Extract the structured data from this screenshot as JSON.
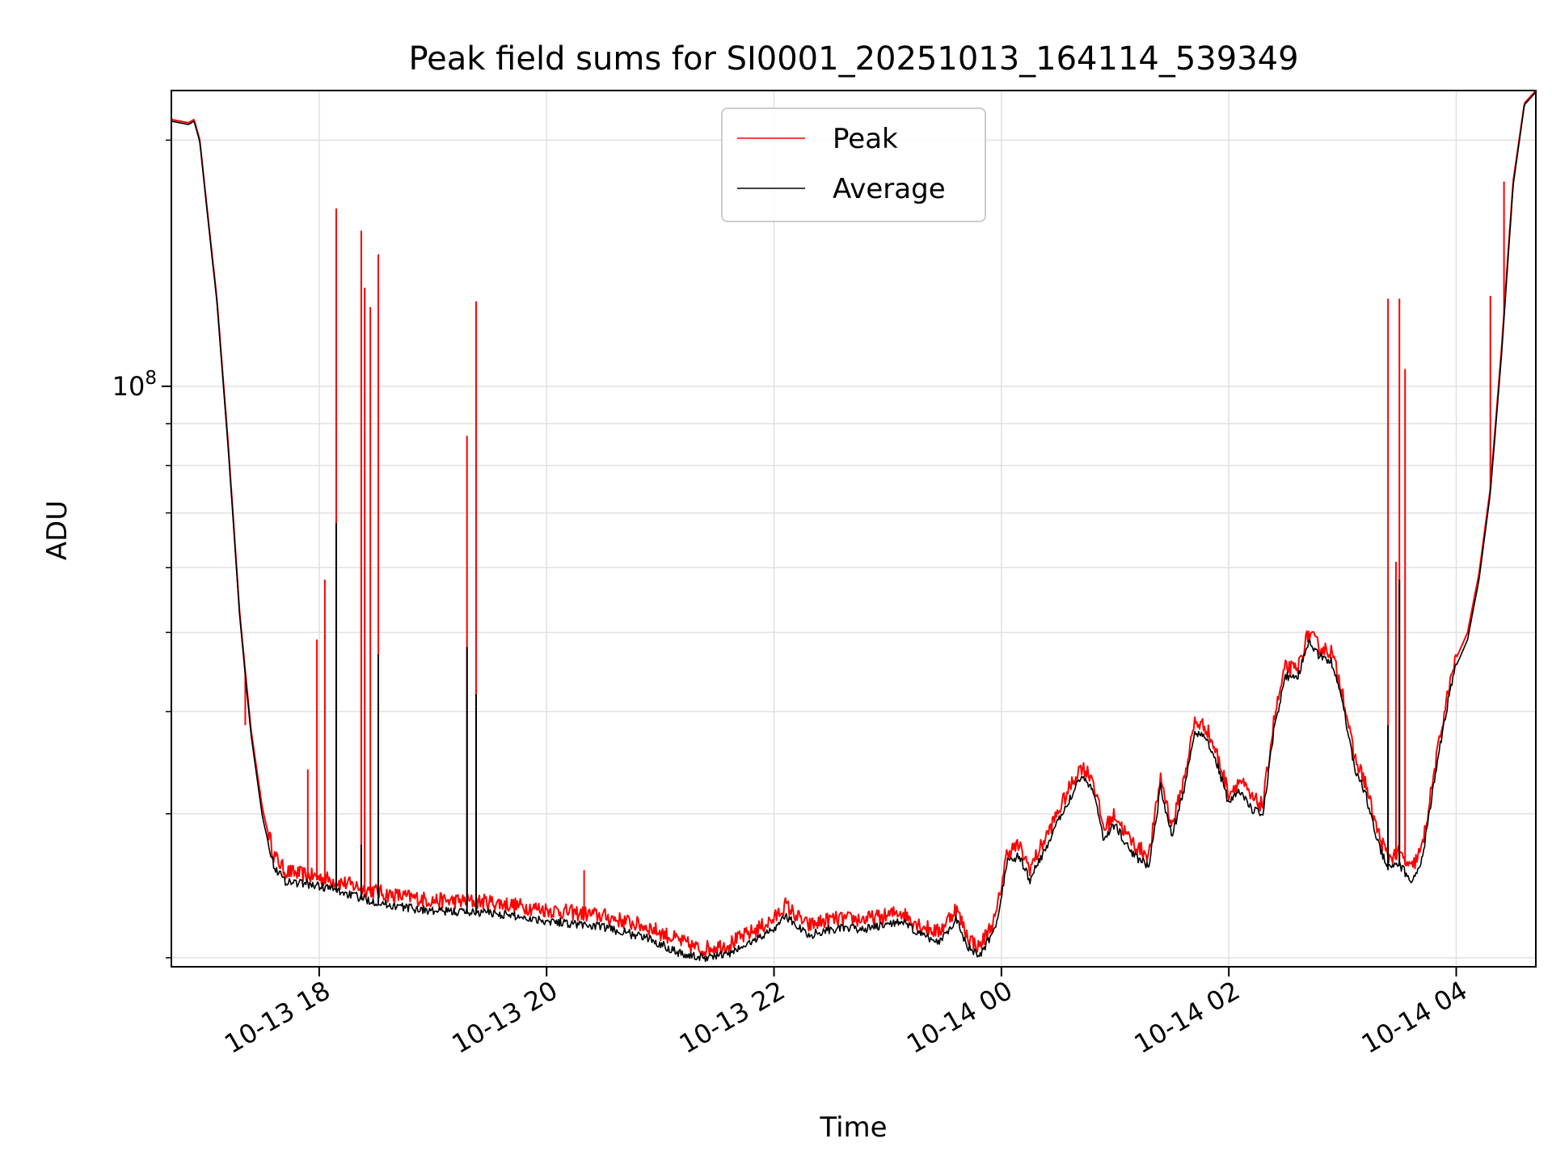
{
  "chart_data": {
    "type": "line",
    "title": "Peak field sums for SI0001_20251013_164114_539349",
    "xlabel": "Time",
    "ylabel": "ADU",
    "yscale": "log",
    "x_units": "hours since 2025-10-13 00:00",
    "xlim": [
      16.7,
      28.7
    ],
    "ylim": [
      19500000,
      230000000
    ],
    "grid": true,
    "legend_position": "top-center",
    "x_ticks": [
      {
        "value": 18,
        "label": "10-13 18"
      },
      {
        "value": 20,
        "label": "10-13 20"
      },
      {
        "value": 22,
        "label": "10-13 22"
      },
      {
        "value": 24,
        "label": "10-14 00"
      },
      {
        "value": 26,
        "label": "10-14 02"
      },
      {
        "value": 28,
        "label": "10-14 04"
      }
    ],
    "y_major_ticks": [
      {
        "value": 100000000,
        "base": "10",
        "exp": "8"
      }
    ],
    "y_minor_ticks": [
      20000000,
      30000000,
      40000000,
      50000000,
      60000000,
      70000000,
      80000000,
      90000000,
      200000000
    ],
    "series": [
      {
        "name": "Peak",
        "color": "#ff0000",
        "baseline": [
          [
            16.7,
            212000000
          ],
          [
            16.85,
            210000000
          ],
          [
            16.9,
            212000000
          ],
          [
            16.95,
            200000000
          ],
          [
            17.0,
            172000000
          ],
          [
            17.1,
            128000000
          ],
          [
            17.2,
            85000000
          ],
          [
            17.3,
            53000000
          ],
          [
            17.4,
            38000000
          ],
          [
            17.5,
            30500000
          ],
          [
            17.6,
            26500000
          ],
          [
            17.7,
            25300000
          ],
          [
            17.9,
            25000000
          ],
          [
            18.1,
            24700000
          ],
          [
            18.3,
            24300000
          ],
          [
            18.6,
            23700000
          ],
          [
            19.0,
            23300000
          ],
          [
            19.5,
            23200000
          ],
          [
            20.0,
            22700000
          ],
          [
            20.5,
            22300000
          ],
          [
            20.9,
            21600000
          ],
          [
            21.2,
            20700000
          ],
          [
            21.35,
            20300000
          ],
          [
            21.6,
            20600000
          ],
          [
            21.8,
            21300000
          ],
          [
            22.0,
            22100000
          ],
          [
            22.1,
            23000000
          ],
          [
            22.2,
            22300000
          ],
          [
            22.3,
            21700000
          ],
          [
            22.5,
            22100000
          ],
          [
            22.8,
            22100000
          ],
          [
            23.0,
            22300000
          ],
          [
            23.1,
            22600000
          ],
          [
            23.3,
            21700000
          ],
          [
            23.45,
            21300000
          ],
          [
            23.6,
            22800000
          ],
          [
            23.7,
            21100000
          ],
          [
            23.8,
            20400000
          ],
          [
            23.95,
            22200000
          ],
          [
            24.05,
            26700000
          ],
          [
            24.15,
            27200000
          ],
          [
            24.25,
            25500000
          ],
          [
            24.4,
            28000000
          ],
          [
            24.6,
            32000000
          ],
          [
            24.7,
            34000000
          ],
          [
            24.8,
            33000000
          ],
          [
            24.9,
            28500000
          ],
          [
            25.0,
            29700000
          ],
          [
            25.1,
            28000000
          ],
          [
            25.2,
            27000000
          ],
          [
            25.3,
            26500000
          ],
          [
            25.4,
            33000000
          ],
          [
            25.5,
            28700000
          ],
          [
            25.6,
            32500000
          ],
          [
            25.7,
            38500000
          ],
          [
            25.8,
            38000000
          ],
          [
            25.9,
            35000000
          ],
          [
            26.0,
            31500000
          ],
          [
            26.1,
            32700000
          ],
          [
            26.2,
            31000000
          ],
          [
            26.3,
            30500000
          ],
          [
            26.4,
            39000000
          ],
          [
            26.5,
            45000000
          ],
          [
            26.6,
            44500000
          ],
          [
            26.7,
            49500000
          ],
          [
            26.8,
            47500000
          ],
          [
            26.9,
            47000000
          ],
          [
            27.0,
            42000000
          ],
          [
            27.1,
            35000000
          ],
          [
            27.2,
            32500000
          ],
          [
            27.3,
            28500000
          ],
          [
            27.4,
            26300000
          ],
          [
            27.5,
            26600000
          ],
          [
            27.6,
            25400000
          ],
          [
            27.7,
            27000000
          ],
          [
            27.8,
            33000000
          ],
          [
            27.9,
            40000000
          ],
          [
            28.0,
            46500000
          ],
          [
            28.1,
            50000000
          ],
          [
            28.2,
            59000000
          ],
          [
            28.3,
            75000000
          ],
          [
            28.4,
            112000000
          ],
          [
            28.5,
            178000000
          ],
          [
            28.6,
            222000000
          ],
          [
            28.7,
            230000000
          ]
        ],
        "spikes": [
          [
            17.35,
            38500000
          ],
          [
            17.48,
            32000000
          ],
          [
            17.9,
            34000000
          ],
          [
            17.98,
            49000000
          ],
          [
            18.05,
            58000000
          ],
          [
            18.15,
            165000000
          ],
          [
            18.37,
            155000000
          ],
          [
            18.4,
            132000000
          ],
          [
            18.45,
            125000000
          ],
          [
            18.52,
            145000000
          ],
          [
            19.3,
            87000000
          ],
          [
            19.38,
            127000000
          ],
          [
            20.33,
            25600000
          ],
          [
            27.35,
            27000000
          ],
          [
            27.4,
            128000000
          ],
          [
            27.47,
            61000000
          ],
          [
            27.5,
            128000000
          ],
          [
            27.55,
            105000000
          ],
          [
            28.3,
            129000000
          ],
          [
            28.42,
            178000000
          ]
        ]
      },
      {
        "name": "Average",
        "color": "#000000",
        "baseline": [
          [
            16.7,
            211000000
          ],
          [
            16.85,
            209000000
          ],
          [
            16.9,
            211000000
          ],
          [
            16.95,
            199000000
          ],
          [
            17.0,
            171000000
          ],
          [
            17.1,
            127000000
          ],
          [
            17.2,
            84000000
          ],
          [
            17.3,
            52500000
          ],
          [
            17.4,
            37500000
          ],
          [
            17.5,
            29800000
          ],
          [
            17.6,
            25800000
          ],
          [
            17.7,
            24700000
          ],
          [
            17.9,
            24500000
          ],
          [
            18.1,
            24200000
          ],
          [
            18.3,
            23700000
          ],
          [
            18.6,
            23100000
          ],
          [
            19.0,
            22700000
          ],
          [
            19.5,
            22600000
          ],
          [
            20.0,
            22100000
          ],
          [
            20.5,
            21700000
          ],
          [
            20.9,
            21000000
          ],
          [
            21.2,
            20100000
          ],
          [
            21.35,
            19900000
          ],
          [
            21.6,
            20100000
          ],
          [
            21.8,
            20800000
          ],
          [
            22.0,
            21600000
          ],
          [
            22.1,
            22400000
          ],
          [
            22.2,
            21800000
          ],
          [
            22.3,
            21200000
          ],
          [
            22.5,
            21600000
          ],
          [
            22.8,
            21600000
          ],
          [
            23.0,
            21800000
          ],
          [
            23.1,
            22100000
          ],
          [
            23.3,
            21200000
          ],
          [
            23.45,
            20800000
          ],
          [
            23.6,
            22200000
          ],
          [
            23.7,
            20600000
          ],
          [
            23.8,
            19900000
          ],
          [
            23.95,
            21700000
          ],
          [
            24.05,
            26000000
          ],
          [
            24.15,
            26500000
          ],
          [
            24.25,
            24800000
          ],
          [
            24.4,
            27300000
          ],
          [
            24.6,
            31200000
          ],
          [
            24.7,
            33200000
          ],
          [
            24.8,
            32200000
          ],
          [
            24.9,
            27800000
          ],
          [
            25.0,
            29000000
          ],
          [
            25.1,
            27300000
          ],
          [
            25.2,
            26300000
          ],
          [
            25.3,
            25800000
          ],
          [
            25.4,
            32200000
          ],
          [
            25.5,
            28000000
          ],
          [
            25.6,
            31700000
          ],
          [
            25.7,
            37600000
          ],
          [
            25.8,
            37100000
          ],
          [
            25.9,
            34200000
          ],
          [
            26.0,
            30700000
          ],
          [
            26.1,
            31900000
          ],
          [
            26.2,
            30200000
          ],
          [
            26.3,
            29700000
          ],
          [
            26.4,
            38100000
          ],
          [
            26.5,
            44000000
          ],
          [
            26.6,
            43500000
          ],
          [
            26.7,
            48500000
          ],
          [
            26.8,
            46500000
          ],
          [
            26.9,
            46000000
          ],
          [
            27.0,
            41000000
          ],
          [
            27.1,
            34200000
          ],
          [
            27.2,
            31700000
          ],
          [
            27.3,
            27800000
          ],
          [
            27.4,
            25600000
          ],
          [
            27.5,
            25900000
          ],
          [
            27.6,
            24700000
          ],
          [
            27.7,
            26300000
          ],
          [
            27.8,
            32200000
          ],
          [
            27.9,
            39200000
          ],
          [
            28.0,
            45500000
          ],
          [
            28.1,
            49000000
          ],
          [
            28.2,
            58000000
          ],
          [
            28.3,
            74000000
          ],
          [
            28.4,
            110000000
          ],
          [
            28.5,
            176000000
          ],
          [
            28.6,
            221000000
          ],
          [
            28.7,
            229000000
          ]
        ],
        "spikes": [
          [
            18.15,
            68000000
          ],
          [
            18.37,
            27500000
          ],
          [
            18.52,
            47000000
          ],
          [
            19.3,
            48000000
          ],
          [
            19.38,
            42000000
          ],
          [
            27.4,
            38500000
          ],
          [
            27.5,
            58000000
          ]
        ]
      }
    ]
  }
}
